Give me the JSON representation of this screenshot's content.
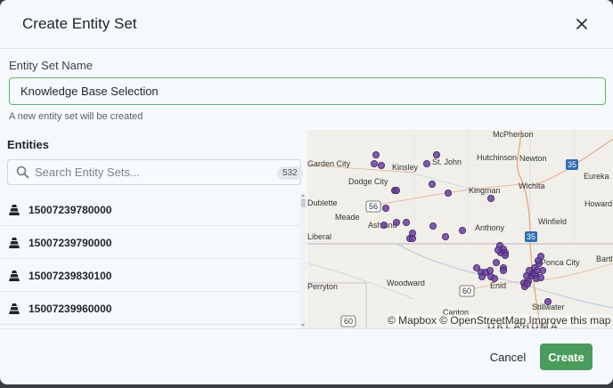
{
  "dialog": {
    "title": "Create Entity Set",
    "close_icon": "close-icon"
  },
  "form": {
    "name_label": "Entity Set Name",
    "name_value": "Knowledge Base Selection",
    "hint": "A new entity set will be created"
  },
  "entities": {
    "title": "Entities",
    "search_placeholder": "Search Entity Sets...",
    "count": "532",
    "items": [
      {
        "label": "15007239780000",
        "icon": "oil-well-icon"
      },
      {
        "label": "15007239790000",
        "icon": "oil-well-icon"
      },
      {
        "label": "15007239830100",
        "icon": "oil-well-icon"
      },
      {
        "label": "15007239960000",
        "icon": "oil-well-icon"
      }
    ]
  },
  "map": {
    "attribution": "© Mapbox © OpenStreetMap Improve this map",
    "point_color": "#6b3fa0",
    "towns": [
      "McPherson",
      "Garden City",
      "Kinsley",
      "St. John",
      "Hutchinson",
      "Newton",
      "Dodge City",
      "Kingman",
      "Wichita",
      "Eureka",
      "Dublette",
      "Meade",
      "Ashland",
      "Anthony",
      "Winfield",
      "Howard",
      "Liberal",
      "Woodward",
      "Enid",
      "Ponca City",
      "Bartlesville",
      "Perryton",
      "Canton",
      "Stillwater"
    ],
    "route_shields": [
      "56",
      "35",
      "35",
      "60",
      "60"
    ],
    "state_label": "OKLAHOMA"
  },
  "footer": {
    "cancel_label": "Cancel",
    "create_label": "Create"
  }
}
